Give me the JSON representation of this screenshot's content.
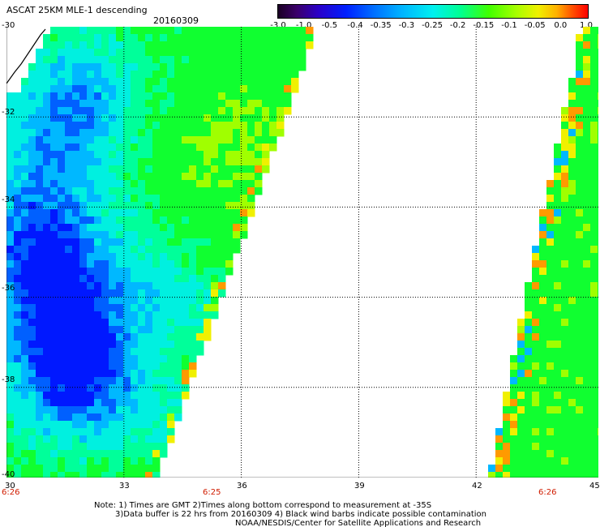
{
  "header": {
    "title": "ASCAT 25KM MLE-1 descending",
    "date": "20160309"
  },
  "colorbar": {
    "labels": [
      "-3.0",
      "-1.0",
      "-0.5",
      "-0.4",
      "-0.35",
      "-0.3",
      "-0.25",
      "-0.2",
      "-0.15",
      "-0.1",
      "-0.05",
      "0.0",
      "1.0"
    ]
  },
  "axes": {
    "lat_labels": [
      "-30",
      "-32",
      "-34",
      "-36",
      "-38",
      "-40"
    ],
    "lon_labels": [
      "30",
      "33",
      "36",
      "39",
      "42",
      "45"
    ],
    "time_labels": [
      "6:26",
      "6:25",
      "6:26"
    ]
  },
  "notes": {
    "line1": "Note: 1) Times are GMT 2)Times along bottom correspond to measurement at -35S",
    "line2": "3)Data buffer is 22 hrs from 20160309 4) Black wind barbs indicate possible contamination",
    "line3": "NOAA/NESDIS/Center for Satellite Applications and Research"
  },
  "colors": {
    "deep_blue": "#0018ff",
    "blue": "#0060ff",
    "light_blue": "#00b8ff",
    "cyan": "#00f0e0",
    "aqua_green": "#00ff9a",
    "green": "#10ff30",
    "yellow_green": "#a0ff00",
    "yellow": "#f0f000",
    "orange": "#ff9a00",
    "grid": "#000000",
    "time_label": "#d01c00"
  }
}
